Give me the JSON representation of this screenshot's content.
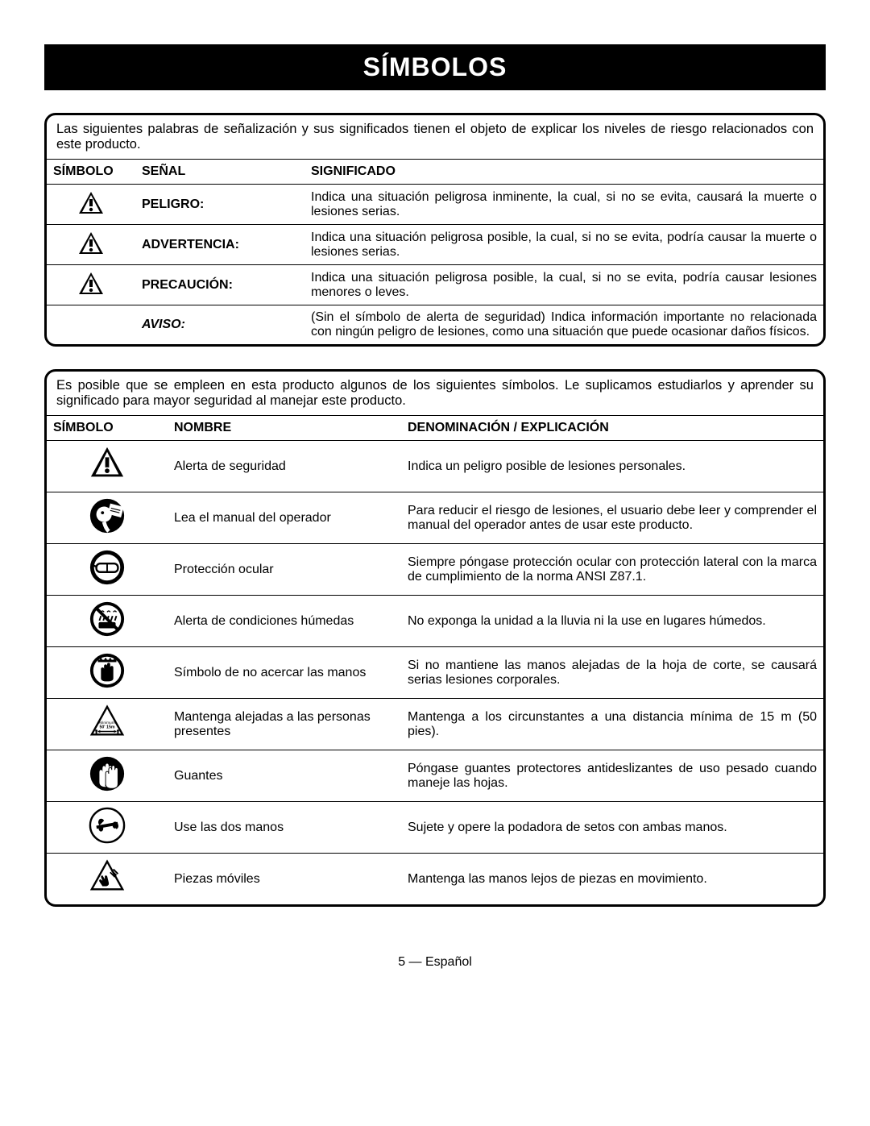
{
  "title": "SÍMBOLOS",
  "signal_intro": "Las siguientes palabras de señalización y sus significados tienen el objeto de explicar los niveles de riesgo relacionados con este producto.",
  "signal_headers": {
    "symbol": "SÍMBOLO",
    "signal": "SEÑAL",
    "meaning": "SIGNIFICADO"
  },
  "signals": [
    {
      "has_icon": true,
      "label": "PELIGRO:",
      "italic": false,
      "meaning": "Indica una situación peligrosa inminente, la cual, si no se evita, causará la muerte o lesiones serias."
    },
    {
      "has_icon": true,
      "label": "ADVERTENCIA:",
      "italic": false,
      "meaning": "Indica una situación peligrosa posible, la cual, si no se evita, podría causar la muerte o lesiones serias."
    },
    {
      "has_icon": true,
      "label": "PRECAUCIÓN:",
      "italic": false,
      "meaning": "Indica una situación peligrosa posible, la cual, si no se evita, podría causar lesiones menores o leves."
    },
    {
      "has_icon": false,
      "label": "AVISO:",
      "italic": true,
      "meaning": "(Sin el símbolo de alerta de seguridad) Indica información importante no relacionada con ningún peligro de lesiones, como una situación que puede ocasionar daños físicos."
    }
  ],
  "symbol_intro": "Es posible que se empleen en esta producto algunos de los siguientes símbolos. Le suplicamos estudiarlos y aprender su significado para mayor seguridad al manejar este producto.",
  "symbol_headers": {
    "symbol": "SÍMBOLO",
    "name": "NOMBRE",
    "explanation": "DENOMINACIÓN / EXPLICACIÓN"
  },
  "symbols": [
    {
      "icon": "alert-triangle",
      "name": "Alerta de seguridad",
      "explanation": "Indica un peligro posible de lesiones personales."
    },
    {
      "icon": "read-manual",
      "name": "Lea el manual del operador",
      "explanation": "Para reducir el riesgo de lesiones, el usuario debe leer y comprender el manual del operador antes de usar este producto."
    },
    {
      "icon": "eye-protection",
      "name": "Protección ocular",
      "explanation": "Siempre póngase protección ocular con protección lateral con la marca de cumplimiento de la norma ANSI Z87.1."
    },
    {
      "icon": "no-rain",
      "name": "Alerta de condiciones húmedas",
      "explanation": "No exponga la unidad a la lluvia ni la use en lugares húmedos."
    },
    {
      "icon": "no-hands",
      "name": "Símbolo de no acercar las manos",
      "explanation": "Si no mantiene las manos alejadas de la hoja de corte, se causará serias lesiones corporales."
    },
    {
      "icon": "keep-away",
      "name": "Mantenga alejadas a las personas presentes",
      "explanation": "Mantenga a los circunstantes a una distancia mínima de 15 m (50 pies)."
    },
    {
      "icon": "gloves",
      "name": "Guantes",
      "explanation": "Póngase guantes protectores antideslizantes de uso pesado cuando maneje las hojas."
    },
    {
      "icon": "two-hands",
      "name": "Use las dos manos",
      "explanation": "Sujete y opere la podadora de setos con ambas manos."
    },
    {
      "icon": "moving-parts",
      "name": "Piezas móviles",
      "explanation": "Mantenga las manos lejos de piezas en movimiento."
    }
  ],
  "footer": "5 — Español"
}
